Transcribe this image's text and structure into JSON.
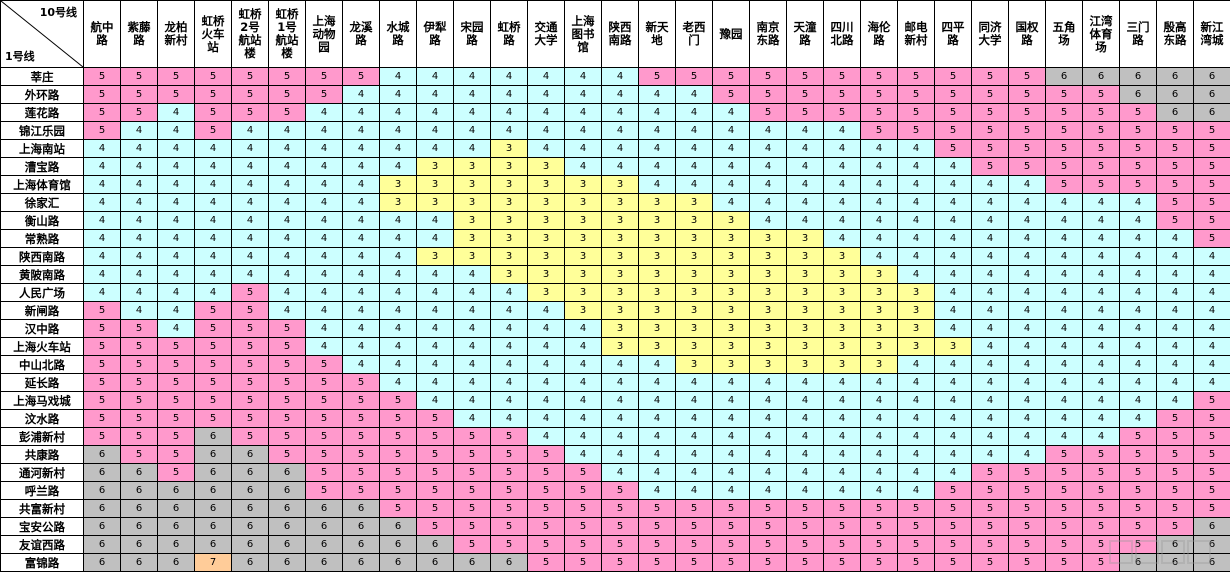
{
  "corner": {
    "top_label": "10号线",
    "bottom_label": "1号线"
  },
  "colors": {
    "3": "#ffff99",
    "4": "#ccffff",
    "5": "#ff99cc",
    "6": "#c0c0c0",
    "7": "#ffcc99"
  },
  "columns": [
    [
      "航中",
      "路"
    ],
    [
      "紫藤",
      "路"
    ],
    [
      "龙柏",
      "新村"
    ],
    [
      "虹桥",
      "火车",
      "站"
    ],
    [
      "虹桥",
      "2号",
      "航站",
      "楼"
    ],
    [
      "虹桥",
      "1号",
      "航站",
      "楼"
    ],
    [
      "上海",
      "动物",
      "园"
    ],
    [
      "龙溪",
      "路"
    ],
    [
      "水城",
      "路"
    ],
    [
      "伊犁",
      "路"
    ],
    [
      "宋园",
      "路"
    ],
    [
      "虹桥",
      "路"
    ],
    [
      "交通",
      "大学"
    ],
    [
      "上海",
      "图书",
      "馆"
    ],
    [
      "陕西",
      "南路"
    ],
    [
      "新天",
      "地"
    ],
    [
      "老西",
      "门"
    ],
    [
      "豫园"
    ],
    [
      "南京",
      "东路"
    ],
    [
      "天潼",
      "路"
    ],
    [
      "四川",
      "北路"
    ],
    [
      "海伦",
      "路"
    ],
    [
      "邮电",
      "新村"
    ],
    [
      "四平",
      "路"
    ],
    [
      "同济",
      "大学"
    ],
    [
      "国权",
      "路"
    ],
    [
      "五角",
      "场"
    ],
    [
      "江湾",
      "体育",
      "场"
    ],
    [
      "三门",
      "路"
    ],
    [
      "殷高",
      "东路"
    ],
    [
      "新江",
      "湾城"
    ]
  ],
  "rows": [
    {
      "name": "莘庄",
      "fares": [
        5,
        5,
        5,
        5,
        5,
        5,
        5,
        5,
        4,
        4,
        4,
        4,
        4,
        4,
        4,
        5,
        5,
        5,
        5,
        5,
        5,
        5,
        5,
        5,
        5,
        5,
        6,
        6,
        6,
        6,
        6
      ]
    },
    {
      "name": "外环路",
      "fares": [
        5,
        5,
        5,
        5,
        5,
        5,
        5,
        4,
        4,
        4,
        4,
        4,
        4,
        4,
        4,
        4,
        4,
        5,
        5,
        5,
        5,
        5,
        5,
        5,
        5,
        5,
        5,
        5,
        6,
        6,
        6
      ]
    },
    {
      "name": "莲花路",
      "fares": [
        5,
        5,
        4,
        5,
        5,
        5,
        4,
        4,
        4,
        4,
        4,
        4,
        4,
        4,
        4,
        4,
        4,
        4,
        5,
        5,
        5,
        5,
        5,
        5,
        5,
        5,
        5,
        5,
        5,
        6,
        6
      ]
    },
    {
      "name": "锦江乐园",
      "fares": [
        5,
        4,
        4,
        5,
        4,
        4,
        4,
        4,
        4,
        4,
        4,
        4,
        4,
        4,
        4,
        4,
        4,
        4,
        4,
        4,
        4,
        5,
        5,
        5,
        5,
        5,
        5,
        5,
        5,
        5,
        5
      ]
    },
    {
      "name": "上海南站",
      "fares": [
        4,
        4,
        4,
        4,
        4,
        4,
        4,
        4,
        4,
        4,
        4,
        3,
        4,
        4,
        4,
        4,
        4,
        4,
        4,
        4,
        4,
        4,
        4,
        5,
        5,
        5,
        5,
        5,
        5,
        5,
        5
      ]
    },
    {
      "name": "漕宝路",
      "fares": [
        4,
        4,
        4,
        4,
        4,
        4,
        4,
        4,
        4,
        3,
        3,
        3,
        3,
        4,
        4,
        4,
        4,
        4,
        4,
        4,
        4,
        4,
        4,
        4,
        5,
        5,
        5,
        5,
        5,
        5,
        5
      ]
    },
    {
      "name": "上海体育馆",
      "fares": [
        4,
        4,
        4,
        4,
        4,
        4,
        4,
        4,
        3,
        3,
        3,
        3,
        3,
        3,
        3,
        4,
        4,
        4,
        4,
        4,
        4,
        4,
        4,
        4,
        4,
        4,
        5,
        5,
        5,
        5,
        5
      ]
    },
    {
      "name": "徐家汇",
      "fares": [
        4,
        4,
        4,
        4,
        4,
        4,
        4,
        4,
        3,
        3,
        3,
        3,
        3,
        3,
        3,
        3,
        3,
        4,
        4,
        4,
        4,
        4,
        4,
        4,
        4,
        4,
        4,
        4,
        4,
        5,
        5
      ]
    },
    {
      "name": "衡山路",
      "fares": [
        4,
        4,
        4,
        4,
        4,
        4,
        4,
        4,
        4,
        4,
        3,
        3,
        3,
        3,
        3,
        3,
        3,
        3,
        4,
        4,
        4,
        4,
        4,
        4,
        4,
        4,
        4,
        4,
        4,
        5,
        5
      ]
    },
    {
      "name": "常熟路",
      "fares": [
        4,
        4,
        4,
        4,
        4,
        4,
        4,
        4,
        4,
        4,
        3,
        3,
        3,
        3,
        3,
        3,
        3,
        3,
        3,
        3,
        4,
        4,
        4,
        4,
        4,
        4,
        4,
        4,
        4,
        4,
        5
      ]
    },
    {
      "name": "陕西南路",
      "fares": [
        4,
        4,
        4,
        4,
        4,
        4,
        4,
        4,
        4,
        3,
        3,
        3,
        3,
        3,
        3,
        3,
        3,
        3,
        3,
        3,
        3,
        4,
        4,
        4,
        4,
        4,
        4,
        4,
        4,
        4,
        4
      ]
    },
    {
      "name": "黄陂南路",
      "fares": [
        4,
        4,
        4,
        4,
        4,
        4,
        4,
        4,
        4,
        4,
        4,
        3,
        3,
        3,
        3,
        3,
        3,
        3,
        3,
        3,
        3,
        3,
        4,
        4,
        4,
        4,
        4,
        4,
        4,
        4,
        4
      ]
    },
    {
      "name": "人民广场",
      "fares": [
        4,
        4,
        4,
        4,
        5,
        4,
        4,
        4,
        4,
        4,
        4,
        4,
        3,
        3,
        3,
        3,
        3,
        3,
        3,
        3,
        3,
        3,
        3,
        4,
        4,
        4,
        4,
        4,
        4,
        4,
        4
      ]
    },
    {
      "name": "新闸路",
      "fares": [
        5,
        4,
        4,
        5,
        5,
        4,
        4,
        4,
        4,
        4,
        4,
        4,
        4,
        3,
        3,
        3,
        3,
        3,
        3,
        3,
        3,
        3,
        3,
        4,
        4,
        4,
        4,
        4,
        4,
        4,
        4
      ]
    },
    {
      "name": "汉中路",
      "fares": [
        5,
        5,
        4,
        5,
        5,
        5,
        4,
        4,
        4,
        4,
        4,
        4,
        4,
        4,
        3,
        3,
        3,
        3,
        3,
        3,
        3,
        3,
        3,
        4,
        4,
        4,
        4,
        4,
        4,
        4,
        4
      ]
    },
    {
      "name": "上海火车站",
      "fares": [
        5,
        5,
        5,
        5,
        5,
        5,
        4,
        4,
        4,
        4,
        4,
        4,
        4,
        4,
        3,
        3,
        3,
        3,
        3,
        3,
        3,
        3,
        3,
        3,
        4,
        4,
        4,
        4,
        4,
        4,
        4
      ]
    },
    {
      "name": "中山北路",
      "fares": [
        5,
        5,
        5,
        5,
        5,
        5,
        5,
        4,
        4,
        4,
        4,
        4,
        4,
        4,
        4,
        4,
        3,
        3,
        3,
        3,
        3,
        3,
        4,
        4,
        4,
        4,
        4,
        4,
        4,
        4,
        4
      ]
    },
    {
      "name": "延长路",
      "fares": [
        5,
        5,
        5,
        5,
        5,
        5,
        5,
        5,
        4,
        4,
        4,
        4,
        4,
        4,
        4,
        4,
        4,
        4,
        4,
        4,
        4,
        4,
        4,
        4,
        4,
        4,
        4,
        4,
        4,
        4,
        4
      ]
    },
    {
      "name": "上海马戏城",
      "fares": [
        5,
        5,
        5,
        5,
        5,
        5,
        5,
        5,
        5,
        4,
        4,
        4,
        4,
        4,
        4,
        4,
        4,
        4,
        4,
        4,
        4,
        4,
        4,
        4,
        4,
        4,
        4,
        4,
        4,
        4,
        5
      ]
    },
    {
      "name": "汶水路",
      "fares": [
        5,
        5,
        5,
        5,
        5,
        5,
        5,
        5,
        5,
        5,
        4,
        4,
        4,
        4,
        4,
        4,
        4,
        4,
        4,
        4,
        4,
        4,
        4,
        4,
        4,
        4,
        4,
        4,
        4,
        5,
        5
      ]
    },
    {
      "name": "彭浦新村",
      "fares": [
        5,
        5,
        5,
        6,
        5,
        5,
        5,
        5,
        5,
        5,
        5,
        5,
        4,
        4,
        4,
        4,
        4,
        4,
        4,
        4,
        4,
        4,
        4,
        4,
        4,
        4,
        4,
        4,
        5,
        5,
        5
      ]
    },
    {
      "name": "共康路",
      "fares": [
        6,
        5,
        5,
        6,
        6,
        5,
        5,
        5,
        5,
        5,
        5,
        5,
        5,
        4,
        4,
        4,
        4,
        4,
        4,
        4,
        4,
        4,
        4,
        4,
        4,
        4,
        5,
        5,
        5,
        5,
        5
      ]
    },
    {
      "name": "通河新村",
      "fares": [
        6,
        6,
        5,
        6,
        6,
        6,
        5,
        5,
        5,
        5,
        5,
        5,
        5,
        5,
        4,
        4,
        4,
        4,
        4,
        4,
        4,
        4,
        4,
        4,
        5,
        5,
        5,
        5,
        5,
        5,
        5
      ]
    },
    {
      "name": "呼兰路",
      "fares": [
        6,
        6,
        6,
        6,
        6,
        6,
        5,
        5,
        5,
        5,
        5,
        5,
        5,
        5,
        5,
        4,
        4,
        4,
        4,
        4,
        4,
        4,
        4,
        5,
        5,
        5,
        5,
        5,
        5,
        5,
        5
      ]
    },
    {
      "name": "共富新村",
      "fares": [
        6,
        6,
        6,
        6,
        6,
        6,
        6,
        6,
        5,
        5,
        5,
        5,
        5,
        5,
        5,
        5,
        5,
        5,
        5,
        5,
        5,
        5,
        5,
        5,
        5,
        5,
        5,
        5,
        5,
        5,
        5
      ]
    },
    {
      "name": "宝安公路",
      "fares": [
        6,
        6,
        6,
        6,
        6,
        6,
        6,
        6,
        6,
        5,
        5,
        5,
        5,
        5,
        5,
        5,
        5,
        5,
        5,
        5,
        5,
        5,
        5,
        5,
        5,
        5,
        5,
        5,
        5,
        5,
        6
      ]
    },
    {
      "name": "友谊西路",
      "fares": [
        6,
        6,
        6,
        6,
        6,
        6,
        6,
        6,
        6,
        6,
        5,
        5,
        5,
        5,
        5,
        5,
        5,
        5,
        5,
        5,
        5,
        5,
        5,
        5,
        5,
        5,
        5,
        5,
        5,
        6,
        6
      ]
    },
    {
      "name": "富锦路",
      "fares": [
        6,
        6,
        6,
        7,
        6,
        6,
        6,
        6,
        6,
        6,
        6,
        6,
        5,
        5,
        5,
        5,
        5,
        5,
        5,
        5,
        5,
        5,
        5,
        5,
        5,
        5,
        5,
        5,
        6,
        6,
        6
      ]
    }
  ]
}
